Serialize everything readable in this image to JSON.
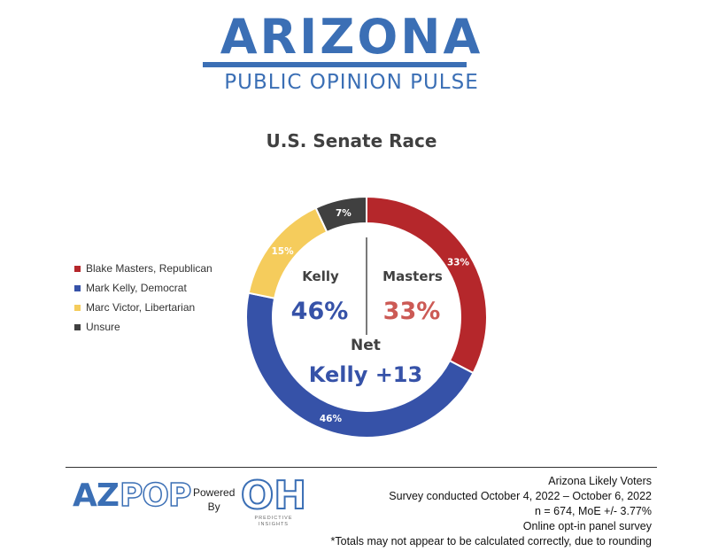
{
  "header": {
    "logo_title": "ARIZONA",
    "logo_subtitle": "PUBLIC OPINION PULSE",
    "brand_color": "#3b6fb5"
  },
  "chart_data": {
    "type": "pie",
    "title": "U.S. Senate Race",
    "legend_placement": "left",
    "series": [
      {
        "name": "Blake Masters, Republican",
        "value": 33,
        "label": "33%",
        "color": "#b5272b"
      },
      {
        "name": "Mark Kelly, Democrat",
        "value": 46,
        "label": "46%",
        "color": "#3652a8"
      },
      {
        "name": "Marc Victor, Libertarian",
        "value": 15,
        "label": "15%",
        "color": "#f5cc5c"
      },
      {
        "name": "Unsure",
        "value": 7,
        "label": "7%",
        "color": "#404040"
      }
    ],
    "center": {
      "left_name": "Kelly",
      "left_value": "46%",
      "right_name": "Masters",
      "right_value": "33%",
      "net_label": "Net",
      "net_value": "Kelly +13"
    }
  },
  "footer": {
    "azpop_az": "AZ",
    "azpop_pop": "POP",
    "powered_line1": "Powered",
    "powered_line2": "By",
    "oh_logo_text": "OH",
    "oh_sub_line1": "PREDICTIVE",
    "oh_sub_line2": "INSIGHTS",
    "notes": [
      "Arizona Likely Voters",
      "Survey conducted October 4, 2022 – October 6, 2022",
      "n = 674, MoE +/- 3.77%",
      "Online opt-in panel survey",
      "*Totals may not appear to be calculated correctly, due to rounding"
    ]
  }
}
